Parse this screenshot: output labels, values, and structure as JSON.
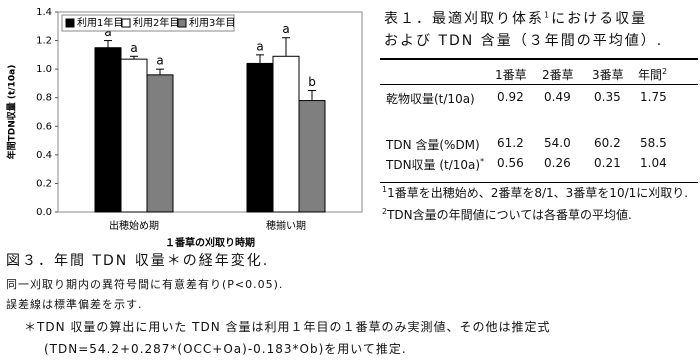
{
  "chart_data": {
    "type": "bar",
    "ylabel": "年間TDN収量 (t/10a)",
    "xlabel": "１番草の刈取り時期",
    "categories": [
      "出穂始め期",
      "穂揃い期"
    ],
    "series": [
      {
        "name": "利用1年目",
        "color": "#000000",
        "values": [
          1.15,
          1.04
        ],
        "errors": [
          0.05,
          0.06
        ],
        "letters": [
          "a",
          "a"
        ]
      },
      {
        "name": "利用2年目",
        "color": "#ffffff",
        "values": [
          1.07,
          1.09
        ],
        "errors": [
          0.02,
          0.13
        ],
        "letters": [
          "a",
          "a"
        ]
      },
      {
        "name": "利用3年目",
        "color": "#7f7f7f",
        "values": [
          0.96,
          0.78
        ],
        "errors": [
          0.04,
          0.07
        ],
        "letters": [
          "a",
          "b"
        ]
      }
    ],
    "ylim": [
      0,
      1.4
    ],
    "yticks": [
      {
        "value": 0,
        "label": "0.0"
      },
      0.2,
      0.4,
      0.6,
      0.8,
      {
        "value": 1,
        "label": "1.0"
      },
      1.2,
      1.4
    ],
    "legend": "upper-left"
  },
  "table": {
    "title_lines": [
      "表１．最適刈取り体系",
      "における収量",
      "および TDN 含量（３年間の平均値）."
    ],
    "title_sup": "1",
    "header": [
      "1番草",
      "2番草",
      "3番草",
      "年間"
    ],
    "header_sup": "2",
    "rows": [
      [
        "乾物収量(t/10a)",
        "0.92",
        "0.49",
        "0.35",
        "1.75"
      ],
      [
        "TDN 含量(%DM)",
        "61.2",
        "54.0",
        "60.2",
        "58.5"
      ],
      [
        "TDN収量 (t/10a)",
        "0.56",
        "0.26",
        "0.21",
        "1.04"
      ]
    ],
    "row_mark": "*",
    "notes": [
      {
        "sup": "1",
        "text": "1番草を出穂始め、2番草を8/1、3番草を10/1に刈取り."
      },
      {
        "sup": "2",
        "text": "TDN含量の年間値については各番草の平均値."
      }
    ]
  },
  "caption": {
    "title": "図３．年間 TDN 収量＊の経年変化.",
    "lines": [
      "同一刈取り期内の異符号間に有意差有り(P<0.05).",
      "誤差線は標準偏差を示す."
    ],
    "footnote": [
      "＊TDN 収量の算出に用いた TDN 含量は利用１年目の１番草のみ実測値、その他は推定式",
      "(TDN=54.2+0.287*(OCC+Oa)-0.183*Ob)を用いて推定."
    ]
  }
}
